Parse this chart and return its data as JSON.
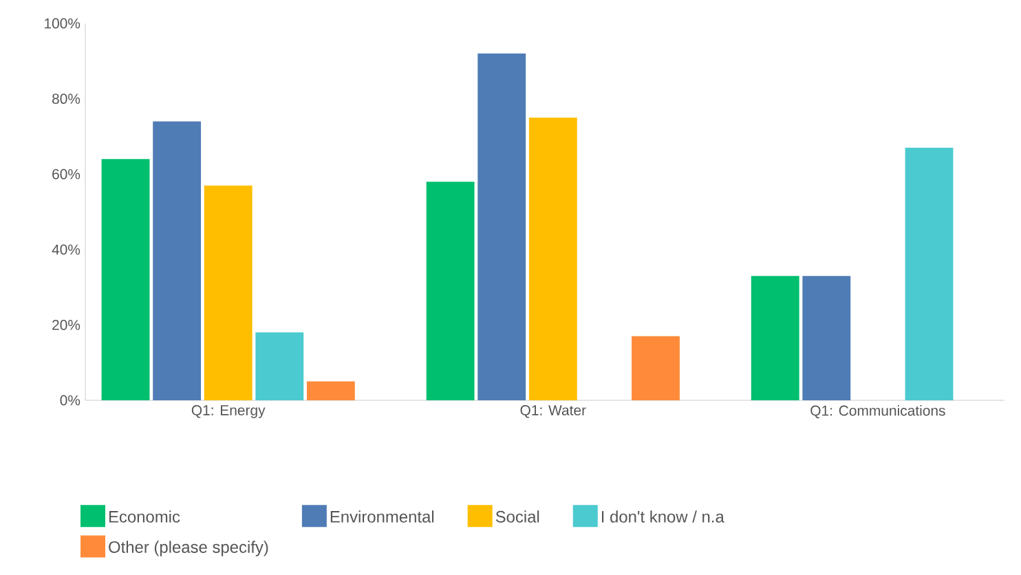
{
  "chart_data": {
    "type": "bar",
    "categories": [
      "Q1: Energy",
      "Q1: Water",
      "Q1: Communications"
    ],
    "series": [
      {
        "name": "Economic",
        "color": "#00bf6f",
        "values": [
          64,
          58,
          33
        ]
      },
      {
        "name": "Environmental",
        "color": "#507cb6",
        "values": [
          74,
          92,
          33
        ]
      },
      {
        "name": "Social",
        "color": "#ffbe00",
        "values": [
          57,
          75,
          null
        ]
      },
      {
        "name": "I don't know / n.a",
        "color": "#4bcad0",
        "values": [
          18,
          null,
          67
        ]
      },
      {
        "name": "Other (please specify)",
        "color": "#ff8b3a",
        "values": [
          5,
          17,
          null
        ]
      }
    ],
    "ylim": [
      0,
      100
    ],
    "yticks": [
      {
        "value": 0,
        "label": "0%"
      },
      {
        "value": 20,
        "label": "20%"
      },
      {
        "value": 40,
        "label": "40%"
      },
      {
        "value": 60,
        "label": "60%"
      },
      {
        "value": 80,
        "label": "80%"
      },
      {
        "value": 100,
        "label": "100%"
      }
    ],
    "grid": false,
    "legend": "bottom left"
  }
}
